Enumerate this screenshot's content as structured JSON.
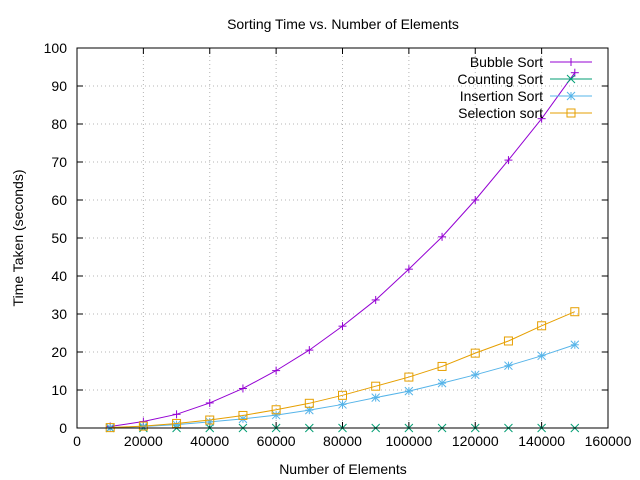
{
  "chart_data": {
    "type": "line",
    "title": "Sorting Time vs. Number of Elements",
    "xlabel": "Number of Elements",
    "ylabel": "Time Taken (seconds)",
    "xlim": [
      0,
      160000
    ],
    "ylim": [
      0,
      100
    ],
    "x_ticks": [
      0,
      20000,
      40000,
      60000,
      80000,
      100000,
      120000,
      140000,
      160000
    ],
    "y_ticks": [
      0,
      10,
      20,
      30,
      40,
      50,
      60,
      70,
      80,
      90,
      100
    ],
    "grid": true,
    "legend_position": "top-right",
    "x": [
      10000,
      20000,
      30000,
      40000,
      50000,
      60000,
      70000,
      80000,
      90000,
      100000,
      110000,
      120000,
      130000,
      140000,
      150000
    ],
    "series": [
      {
        "name": "Bubble Sort",
        "color": "#9400d3",
        "marker": "plus",
        "values": [
          0.4,
          1.7,
          3.6,
          6.6,
          10.4,
          15.1,
          20.5,
          26.8,
          33.7,
          41.8,
          50.3,
          60.0,
          70.5,
          81.4,
          93.5
        ]
      },
      {
        "name": "Counting Sort",
        "color": "#009e73",
        "marker": "cross",
        "values": [
          0,
          0,
          0,
          0,
          0,
          0,
          0,
          0,
          0,
          0,
          0,
          0,
          0,
          0,
          0
        ]
      },
      {
        "name": "Insertion Sort",
        "color": "#56b4e9",
        "marker": "star",
        "values": [
          0.1,
          0.4,
          0.9,
          1.6,
          2.4,
          3.4,
          4.7,
          6.2,
          8.0,
          9.7,
          11.8,
          14.0,
          16.4,
          19.0,
          21.9
        ]
      },
      {
        "name": "Selection sort",
        "color": "#e69f00",
        "marker": "square",
        "values": [
          0.1,
          0.5,
          1.2,
          2.1,
          3.3,
          4.8,
          6.5,
          8.6,
          11.0,
          13.4,
          16.2,
          19.7,
          22.9,
          26.9,
          30.6
        ]
      }
    ]
  }
}
